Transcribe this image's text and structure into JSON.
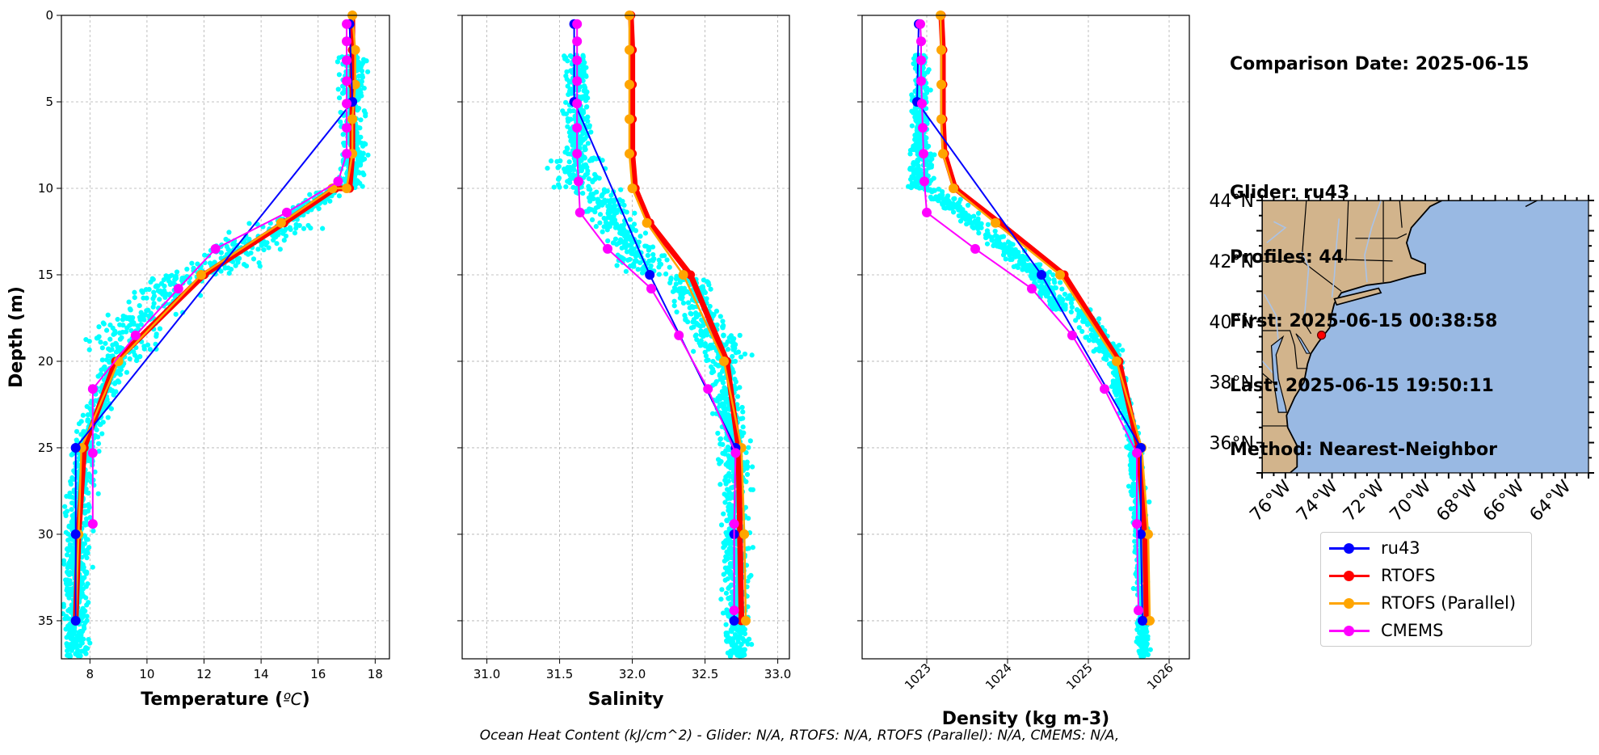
{
  "info": {
    "comparison_date": "Comparison Date: 2025-06-15",
    "glider": "Glider: ru43",
    "profiles": "Profiles: 44",
    "first": "First: 2025-06-15 00:38:58",
    "last": "Last: 2025-06-15 19:50:11",
    "method": "Method: Nearest-Neighbor"
  },
  "footer": "Ocean Heat Content (kJ/cm^2) - Glider: N/A,  RTOFS: N/A,  RTOFS (Parallel): N/A,  CMEMS: N/A,",
  "legend": [
    {
      "name": "ru43",
      "color": "#0000ff"
    },
    {
      "name": "RTOFS",
      "color": "#ff0000"
    },
    {
      "name": "RTOFS (Parallel)",
      "color": "#ffa500"
    },
    {
      "name": "CMEMS",
      "color": "#ff00ff"
    }
  ],
  "colors": {
    "glider_points": "#00ffff",
    "grid": "#b0b0b0",
    "land": "#d2b48c",
    "ocean": "#99b9e3",
    "rivers": "#a9c3e8"
  },
  "chart_data": [
    {
      "type": "line",
      "title": "",
      "xlabel": "Temperature (°C)",
      "ylabel": "Depth (m)",
      "xlim": [
        7.0,
        18.5
      ],
      "ylim": [
        37.2,
        0
      ],
      "xticks": [
        8,
        10,
        12,
        14,
        16,
        18
      ],
      "yticks": [
        0,
        5,
        10,
        15,
        20,
        25,
        30,
        35
      ],
      "grid": true,
      "series": [
        {
          "name": "ru43",
          "x": [
            17.1,
            17.2,
            7.5,
            7.5,
            7.5
          ],
          "y": [
            0.5,
            5,
            25,
            30,
            35
          ]
        },
        {
          "name": "RTOFS",
          "x": [
            17.2,
            17.2,
            17.2,
            17.2,
            17.2,
            17.1,
            16.6,
            14.8,
            12.0,
            8.9,
            7.8,
            7.6,
            7.5
          ],
          "y": [
            0,
            2,
            4,
            6,
            8,
            10,
            10,
            12,
            15,
            20,
            25,
            30,
            35
          ]
        },
        {
          "name": "RTOFS (Parallel)",
          "x": [
            17.2,
            17.3,
            17.3,
            17.2,
            17.2,
            17.0,
            16.5,
            14.7,
            11.9,
            9.0,
            7.7,
            7.6,
            7.5
          ],
          "y": [
            0,
            2,
            4,
            6,
            8,
            10,
            10,
            12,
            15,
            20,
            25,
            30,
            35
          ]
        },
        {
          "name": "CMEMS",
          "x": [
            17.0,
            17.0,
            17.0,
            17.0,
            17.0,
            17.0,
            17.0,
            16.7,
            14.9,
            12.4,
            11.1,
            9.6,
            8.1,
            8.1,
            8.1
          ],
          "y": [
            0.5,
            1.5,
            2.6,
            3.8,
            5.1,
            6.5,
            8.0,
            9.6,
            11.4,
            13.5,
            15.8,
            18.5,
            21.6,
            25.3,
            29.4
          ]
        }
      ]
    },
    {
      "type": "line",
      "title": "",
      "xlabel": "Salinity",
      "ylabel": "",
      "xlim": [
        30.83,
        33.08
      ],
      "ylim": [
        37.2,
        0
      ],
      "xticks": [
        31.0,
        31.5,
        32.0,
        32.5,
        33.0
      ],
      "yticks": [
        0,
        5,
        10,
        15,
        20,
        25,
        30,
        35
      ],
      "grid": true,
      "series": [
        {
          "name": "ru43",
          "x": [
            31.6,
            31.6,
            32.12,
            32.71,
            32.7,
            32.7
          ],
          "y": [
            0.5,
            5,
            15,
            25,
            30,
            35
          ]
        },
        {
          "name": "RTOFS",
          "x": [
            31.99,
            32.0,
            32.0,
            32.0,
            32.0,
            32.02,
            32.12,
            32.4,
            32.65,
            32.73,
            32.74,
            32.75
          ],
          "y": [
            0,
            2,
            4,
            6,
            8,
            10,
            12,
            15,
            20,
            25,
            30,
            35
          ]
        },
        {
          "name": "RTOFS (Parallel)",
          "x": [
            31.98,
            31.98,
            31.98,
            31.98,
            31.98,
            32.0,
            32.1,
            32.35,
            32.63,
            32.75,
            32.77,
            32.78
          ],
          "y": [
            0,
            2,
            4,
            6,
            8,
            10,
            12,
            15,
            20,
            25,
            30,
            35
          ]
        },
        {
          "name": "CMEMS",
          "x": [
            31.62,
            31.62,
            31.62,
            31.62,
            31.62,
            31.62,
            31.62,
            31.63,
            31.64,
            31.83,
            32.13,
            32.32,
            32.52,
            32.71,
            32.7,
            32.7
          ],
          "y": [
            0.5,
            1.5,
            2.6,
            3.8,
            5.1,
            6.5,
            8.0,
            9.6,
            11.4,
            13.5,
            15.8,
            18.5,
            21.6,
            25.3,
            29.4,
            34.4
          ]
        }
      ]
    },
    {
      "type": "line",
      "title": "",
      "xlabel": "Density (kg m-3)",
      "ylabel": "",
      "xlim": [
        1022.2,
        1026.25
      ],
      "ylim": [
        37.2,
        0
      ],
      "xticks": [
        1023,
        1024,
        1025,
        1026
      ],
      "yticks": [
        0,
        5,
        10,
        15,
        20,
        25,
        30,
        35
      ],
      "grid": true,
      "series": [
        {
          "name": "ru43",
          "x": [
            1022.9,
            1022.88,
            1024.42,
            1025.65,
            1025.65,
            1025.67
          ],
          "y": [
            0.5,
            5,
            15,
            25,
            30,
            35
          ]
        },
        {
          "name": "RTOFS",
          "x": [
            1023.18,
            1023.2,
            1023.2,
            1023.2,
            1023.22,
            1023.35,
            1023.9,
            1024.7,
            1025.38,
            1025.62,
            1025.7,
            1025.72
          ],
          "y": [
            0,
            2,
            4,
            6,
            8,
            10,
            12,
            15,
            20,
            25,
            30,
            35
          ]
        },
        {
          "name": "RTOFS (Parallel)",
          "x": [
            1023.17,
            1023.18,
            1023.18,
            1023.18,
            1023.2,
            1023.33,
            1023.85,
            1024.65,
            1025.35,
            1025.66,
            1025.74,
            1025.76
          ],
          "y": [
            0,
            2,
            4,
            6,
            8,
            10,
            12,
            15,
            20,
            25,
            30,
            35
          ]
        },
        {
          "name": "CMEMS",
          "x": [
            1022.92,
            1022.93,
            1022.93,
            1022.93,
            1022.94,
            1022.95,
            1022.96,
            1022.97,
            1023.0,
            1023.6,
            1024.3,
            1024.8,
            1025.2,
            1025.6,
            1025.6,
            1025.62
          ],
          "y": [
            0.5,
            1.5,
            2.6,
            3.8,
            5.1,
            6.5,
            8.0,
            9.6,
            11.4,
            13.5,
            15.8,
            18.5,
            21.6,
            25.3,
            29.4,
            34.4
          ]
        }
      ]
    },
    {
      "type": "map",
      "title": "",
      "lon_range": [
        -77.0,
        -63.0
      ],
      "lat_range": [
        35.0,
        44.0
      ],
      "xticks": [
        "76°W",
        "74°W",
        "72°W",
        "70°W",
        "68°W",
        "66°W",
        "64°W"
      ],
      "yticks": [
        "44°N",
        "42°N",
        "40°N",
        "38°N",
        "36°N"
      ],
      "xtick_values": [
        -76,
        -74,
        -72,
        -70,
        -68,
        -66,
        -64
      ],
      "ytick_values": [
        44,
        42,
        40,
        38,
        36
      ],
      "glider_position": {
        "lon": -74.45,
        "lat": 39.55
      }
    }
  ]
}
